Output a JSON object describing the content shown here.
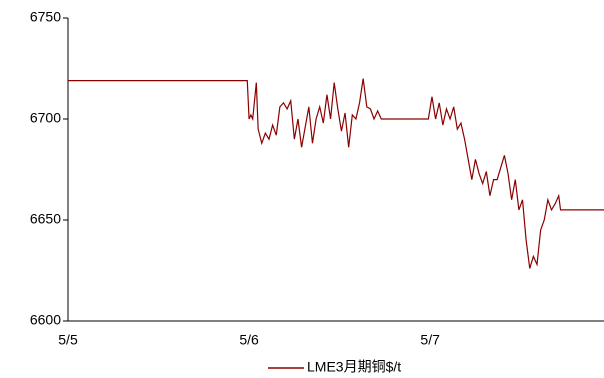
{
  "chart_data": {
    "type": "line",
    "x": [
      0,
      0.99,
      1.0,
      1.01,
      1.02,
      1.04,
      1.05,
      1.07,
      1.09,
      1.11,
      1.13,
      1.15,
      1.17,
      1.19,
      1.21,
      1.23,
      1.25,
      1.27,
      1.29,
      1.31,
      1.33,
      1.35,
      1.37,
      1.39,
      1.41,
      1.43,
      1.45,
      1.47,
      1.49,
      1.51,
      1.53,
      1.55,
      1.57,
      1.59,
      1.61,
      1.63,
      1.65,
      1.67,
      1.69,
      1.71,
      1.73,
      1.99,
      2.01,
      2.03,
      2.05,
      2.07,
      2.09,
      2.11,
      2.13,
      2.15,
      2.17,
      2.19,
      2.21,
      2.23,
      2.25,
      2.27,
      2.29,
      2.31,
      2.33,
      2.35,
      2.37,
      2.39,
      2.41,
      2.43,
      2.45,
      2.47,
      2.49,
      2.51,
      2.53,
      2.55,
      2.57,
      2.59,
      2.61,
      2.63,
      2.65,
      2.67,
      2.69,
      2.71,
      2.72,
      2.96
    ],
    "series": [
      {
        "name": "LME3月期铜$/t",
        "color": "#8b0000",
        "values": [
          6719,
          6719,
          6700,
          6702,
          6700,
          6718,
          6695,
          6688,
          6693,
          6690,
          6697,
          6692,
          6706,
          6708,
          6705,
          6709,
          6690,
          6700,
          6686,
          6696,
          6706,
          6688,
          6700,
          6706,
          6698,
          6712,
          6700,
          6718,
          6705,
          6694,
          6703,
          6686,
          6702,
          6700,
          6708,
          6720,
          6706,
          6705,
          6700,
          6704,
          6700,
          6700,
          6711,
          6700,
          6708,
          6697,
          6705,
          6700,
          6706,
          6695,
          6698,
          6690,
          6680,
          6670,
          6680,
          6673,
          6668,
          6674,
          6662,
          6670,
          6670,
          6676,
          6682,
          6673,
          6660,
          6670,
          6655,
          6660,
          6640,
          6626,
          6632,
          6628,
          6645,
          6650,
          6660,
          6655,
          6658,
          6662,
          6655,
          6655
        ]
      }
    ],
    "xlim": [
      0,
      2.96
    ],
    "xticks": [
      {
        "value": 0,
        "label": "5/5"
      },
      {
        "value": 1,
        "label": "5/6"
      },
      {
        "value": 2,
        "label": "5/7"
      }
    ],
    "ylim": [
      6600,
      6750
    ],
    "yticks": [
      6600,
      6650,
      6700,
      6750
    ],
    "legend": "bottom"
  }
}
